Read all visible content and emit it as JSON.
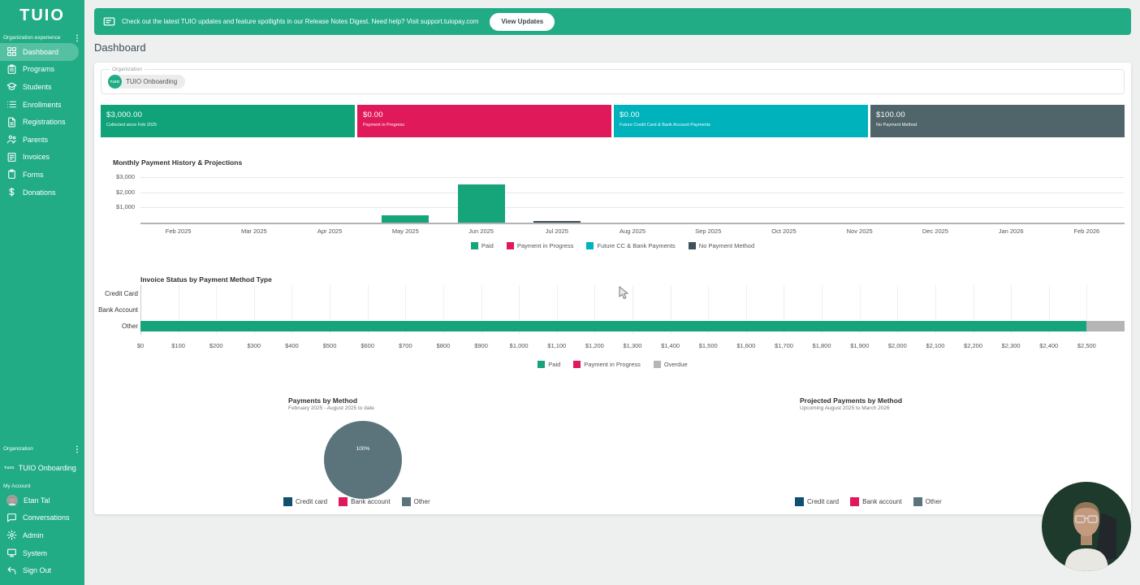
{
  "brand": {
    "logo_text": "TUIO",
    "green": "#21ac85",
    "crimson": "#e0195a",
    "teal": "#00b2bb",
    "slate": "#50656a",
    "navy": "#104f70",
    "pie_slate": "#5b747c"
  },
  "banner": {
    "text": "Check out the latest TUIO updates and feature spotlights in our Release Notes Digest. Need help? Visit support.tuiopay.com",
    "button_label": "View Updates"
  },
  "page_title": "Dashboard",
  "sidebar": {
    "top_section_label": "Organization experience",
    "nav": [
      {
        "label": "Dashboard",
        "icon": "dashboard-icon",
        "active": true
      },
      {
        "label": "Programs",
        "icon": "programs-icon",
        "active": false
      },
      {
        "label": "Students",
        "icon": "students-icon",
        "active": false
      },
      {
        "label": "Enrollments",
        "icon": "enrollments-icon",
        "active": false
      },
      {
        "label": "Registrations",
        "icon": "registrations-icon",
        "active": false
      },
      {
        "label": "Parents",
        "icon": "parents-icon",
        "active": false
      },
      {
        "label": "Invoices",
        "icon": "invoices-icon",
        "active": false
      },
      {
        "label": "Forms",
        "icon": "forms-icon",
        "active": false
      },
      {
        "label": "Donations",
        "icon": "donations-icon",
        "active": false
      }
    ],
    "org_section_label": "Organization",
    "org_logo_text": "TUIO",
    "org_name": "TUIO Onboarding",
    "account_section_label": "My Account",
    "account_nav": [
      {
        "label": "Etan Tal",
        "icon": "avatar"
      },
      {
        "label": "Conversations",
        "icon": "conversations-icon"
      },
      {
        "label": "Admin",
        "icon": "admin-icon"
      },
      {
        "label": "System",
        "icon": "system-icon"
      },
      {
        "label": "Sign Out",
        "icon": "signout-icon"
      }
    ]
  },
  "org_selector": {
    "legend": "Organization",
    "chip_logo_text": "TUIO",
    "chip_label": "TUIO Onboarding"
  },
  "stat_cards": [
    {
      "amount": "$3,000.00",
      "label": "Collected since Feb 2025",
      "color": "#10a37a"
    },
    {
      "amount": "$0.00",
      "label": "Payment in Progress",
      "color": "#e0195a"
    },
    {
      "amount": "$0.00",
      "label": "Future Credit Card & Bank Account Payments",
      "color": "#00b2bb"
    },
    {
      "amount": "$100.00",
      "label": "No Payment Method",
      "color": "#50656a"
    }
  ],
  "chart_data": [
    {
      "type": "bar",
      "title": "Monthly Payment History & Projections",
      "categories": [
        "Feb 2025",
        "Mar 2025",
        "Apr 2025",
        "May 2025",
        "Jun 2025",
        "Jul 2025",
        "Aug 2025",
        "Sep 2025",
        "Oct 2025",
        "Nov 2025",
        "Dec 2025",
        "Jan 2026",
        "Feb 2026"
      ],
      "series": [
        {
          "name": "Paid",
          "color": "#16a47b",
          "values": [
            0,
            0,
            0,
            500,
            2500,
            0,
            0,
            0,
            0,
            0,
            0,
            0,
            0
          ]
        },
        {
          "name": "Payment in Progress",
          "color": "#e0195a",
          "values": [
            0,
            0,
            0,
            0,
            0,
            0,
            0,
            0,
            0,
            0,
            0,
            0,
            0
          ]
        },
        {
          "name": "Future CC & Bank Payments",
          "color": "#00b2bb",
          "values": [
            0,
            0,
            0,
            0,
            0,
            0,
            0,
            0,
            0,
            0,
            0,
            0,
            0
          ]
        },
        {
          "name": "No Payment Method",
          "color": "#3f525a",
          "values": [
            0,
            0,
            0,
            0,
            0,
            100,
            0,
            0,
            0,
            0,
            0,
            0,
            0
          ]
        }
      ],
      "ytick_values": [
        1000,
        2000,
        3000
      ],
      "ytick_labels": [
        "$1,000",
        "$2,000",
        "$3,000"
      ],
      "ylim": [
        0,
        3000
      ],
      "grid": true,
      "legend_position": "bottom"
    },
    {
      "type": "bar-horizontal",
      "title": "Invoice Status by Payment Method Type",
      "categories": [
        "Credit Card",
        "Bank Account",
        "Other"
      ],
      "series": [
        {
          "name": "Paid",
          "color": "#16a47b",
          "values": [
            0,
            0,
            2500
          ]
        },
        {
          "name": "Payment in Progress",
          "color": "#e0195a",
          "values": [
            0,
            0,
            0
          ]
        },
        {
          "name": "Overdue",
          "color": "#b5b5b5",
          "values": [
            0,
            0,
            100
          ]
        }
      ],
      "xtick_values": [
        0,
        100,
        200,
        300,
        400,
        500,
        600,
        700,
        800,
        900,
        1000,
        1100,
        1200,
        1300,
        1400,
        1500,
        1600,
        1700,
        1800,
        1900,
        2000,
        2100,
        2200,
        2300,
        2400,
        2500
      ],
      "xtick_labels": [
        "$0",
        "$100",
        "$200",
        "$300",
        "$400",
        "$500",
        "$600",
        "$700",
        "$800",
        "$900",
        "$1,000",
        "$1,100",
        "$1,200",
        "$1,300",
        "$1,400",
        "$1,500",
        "$1,600",
        "$1,700",
        "$1,800",
        "$1,900",
        "$2,000",
        "$2,100",
        "$2,200",
        "$2,300",
        "$2,400",
        "$2,500"
      ],
      "xlim": [
        0,
        2600
      ],
      "grid": true,
      "legend_position": "bottom"
    },
    {
      "type": "pie",
      "title": "Payments by Method",
      "subtitle": "February 2025 - August 2025 to date",
      "slices": [
        {
          "name": "Credit card",
          "color": "#104f70",
          "pct": 0
        },
        {
          "name": "Bank account",
          "color": "#e0195a",
          "pct": 0
        },
        {
          "name": "Other",
          "color": "#5b747c",
          "pct": 100
        }
      ],
      "center_label": "100%",
      "legend_position": "bottom"
    },
    {
      "type": "pie",
      "title": "Projected Payments by Method",
      "subtitle": "Upcoming August 2025 to March 2026",
      "slices": [
        {
          "name": "Credit card",
          "color": "#104f70",
          "pct": 0
        },
        {
          "name": "Bank account",
          "color": "#e0195a",
          "pct": 0
        },
        {
          "name": "Other",
          "color": "#5b747c",
          "pct": 0
        }
      ],
      "center_label": "",
      "legend_position": "bottom"
    }
  ]
}
